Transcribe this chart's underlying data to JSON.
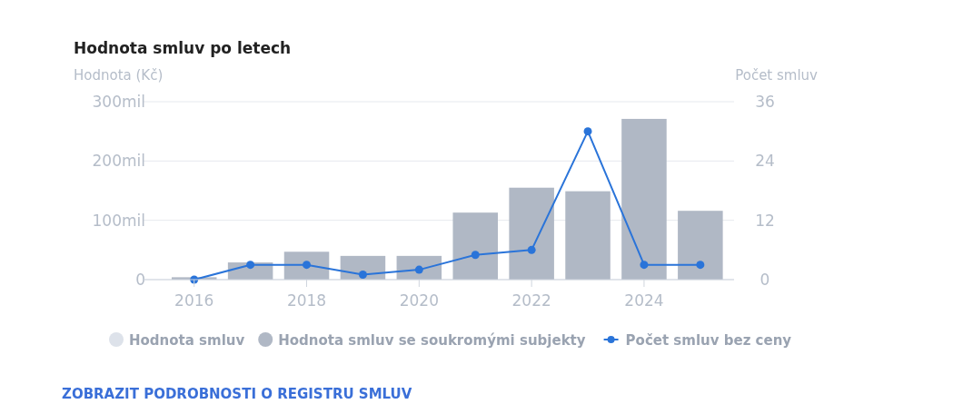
{
  "chart_data": {
    "type": "bar",
    "title": "Hodnota smluv po letech",
    "ylabel": "Hodnota (Kč)",
    "y2label": "Počet smluv",
    "x": [
      2016,
      2017,
      2018,
      2019,
      2020,
      2021,
      2022,
      2023,
      2024,
      2025
    ],
    "xlim": [
      2015.1,
      2025.6
    ],
    "xticks": [
      2016,
      2018,
      2020,
      2022,
      2024
    ],
    "ylim": [
      0,
      300
    ],
    "yticks": [
      {
        "value": 0,
        "label": "0"
      },
      {
        "value": 100,
        "label": "100mil"
      },
      {
        "value": 200,
        "label": "200mil"
      },
      {
        "value": 300,
        "label": "300mil"
      }
    ],
    "y2lim": [
      0,
      36
    ],
    "y2ticks": [
      0,
      12,
      24,
      36
    ],
    "series": [
      {
        "name": "Hodnota smluv",
        "color": "#dde2ea",
        "values": [
          null,
          null,
          null,
          null,
          null,
          null,
          null,
          null,
          null,
          null
        ]
      },
      {
        "name": "Hodnota smluv se soukromými subjekty",
        "color": "#b0b8c5",
        "values": [
          4,
          29,
          47,
          40,
          40,
          113,
          155,
          149,
          271,
          116
        ]
      },
      {
        "name": "Počet smluv bez ceny",
        "type": "line",
        "axis": "y2",
        "color": "#2a74d9",
        "marker": "circle",
        "values": [
          0,
          3,
          3,
          1,
          2,
          5,
          6,
          30,
          3,
          3
        ]
      }
    ],
    "grid": "y",
    "legend": "bottom",
    "annotations": [
      "ZOBRAZIT PODROBNOSTI O REGISTRU SMLUV"
    ]
  }
}
